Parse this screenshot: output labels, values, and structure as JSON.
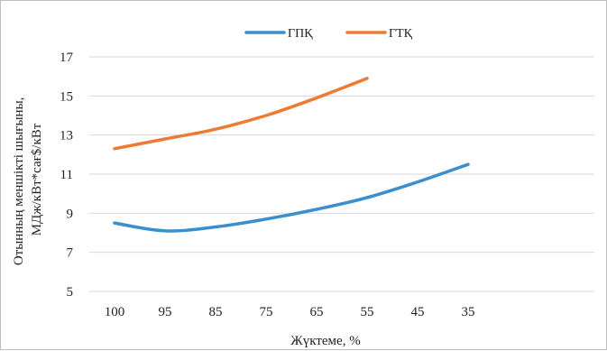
{
  "chart_data": {
    "type": "line",
    "categories": [
      "100",
      "95",
      "85",
      "75",
      "65",
      "55",
      "45",
      "35"
    ],
    "extra_category_slots": 2,
    "series": [
      {
        "name": "ГПҚ",
        "color": "#3b8fcd",
        "values": [
          8.5,
          8.1,
          8.3,
          8.7,
          9.2,
          9.8,
          10.6,
          11.5
        ]
      },
      {
        "name": "ГТҚ",
        "color": "#ef7b33",
        "values": [
          12.3,
          12.8,
          13.3,
          14.0,
          14.9,
          15.9,
          null,
          null
        ]
      }
    ],
    "xlabel": "Жүктеме, %",
    "ylabel": [
      "Отынның меншікті шығыны,",
      "МДж/кВт*сағ$/кВт"
    ],
    "ylim": [
      5,
      17
    ],
    "yticks": [
      5,
      7,
      9,
      11,
      13,
      15,
      17
    ],
    "grid": true,
    "legend_position": "top-center"
  }
}
